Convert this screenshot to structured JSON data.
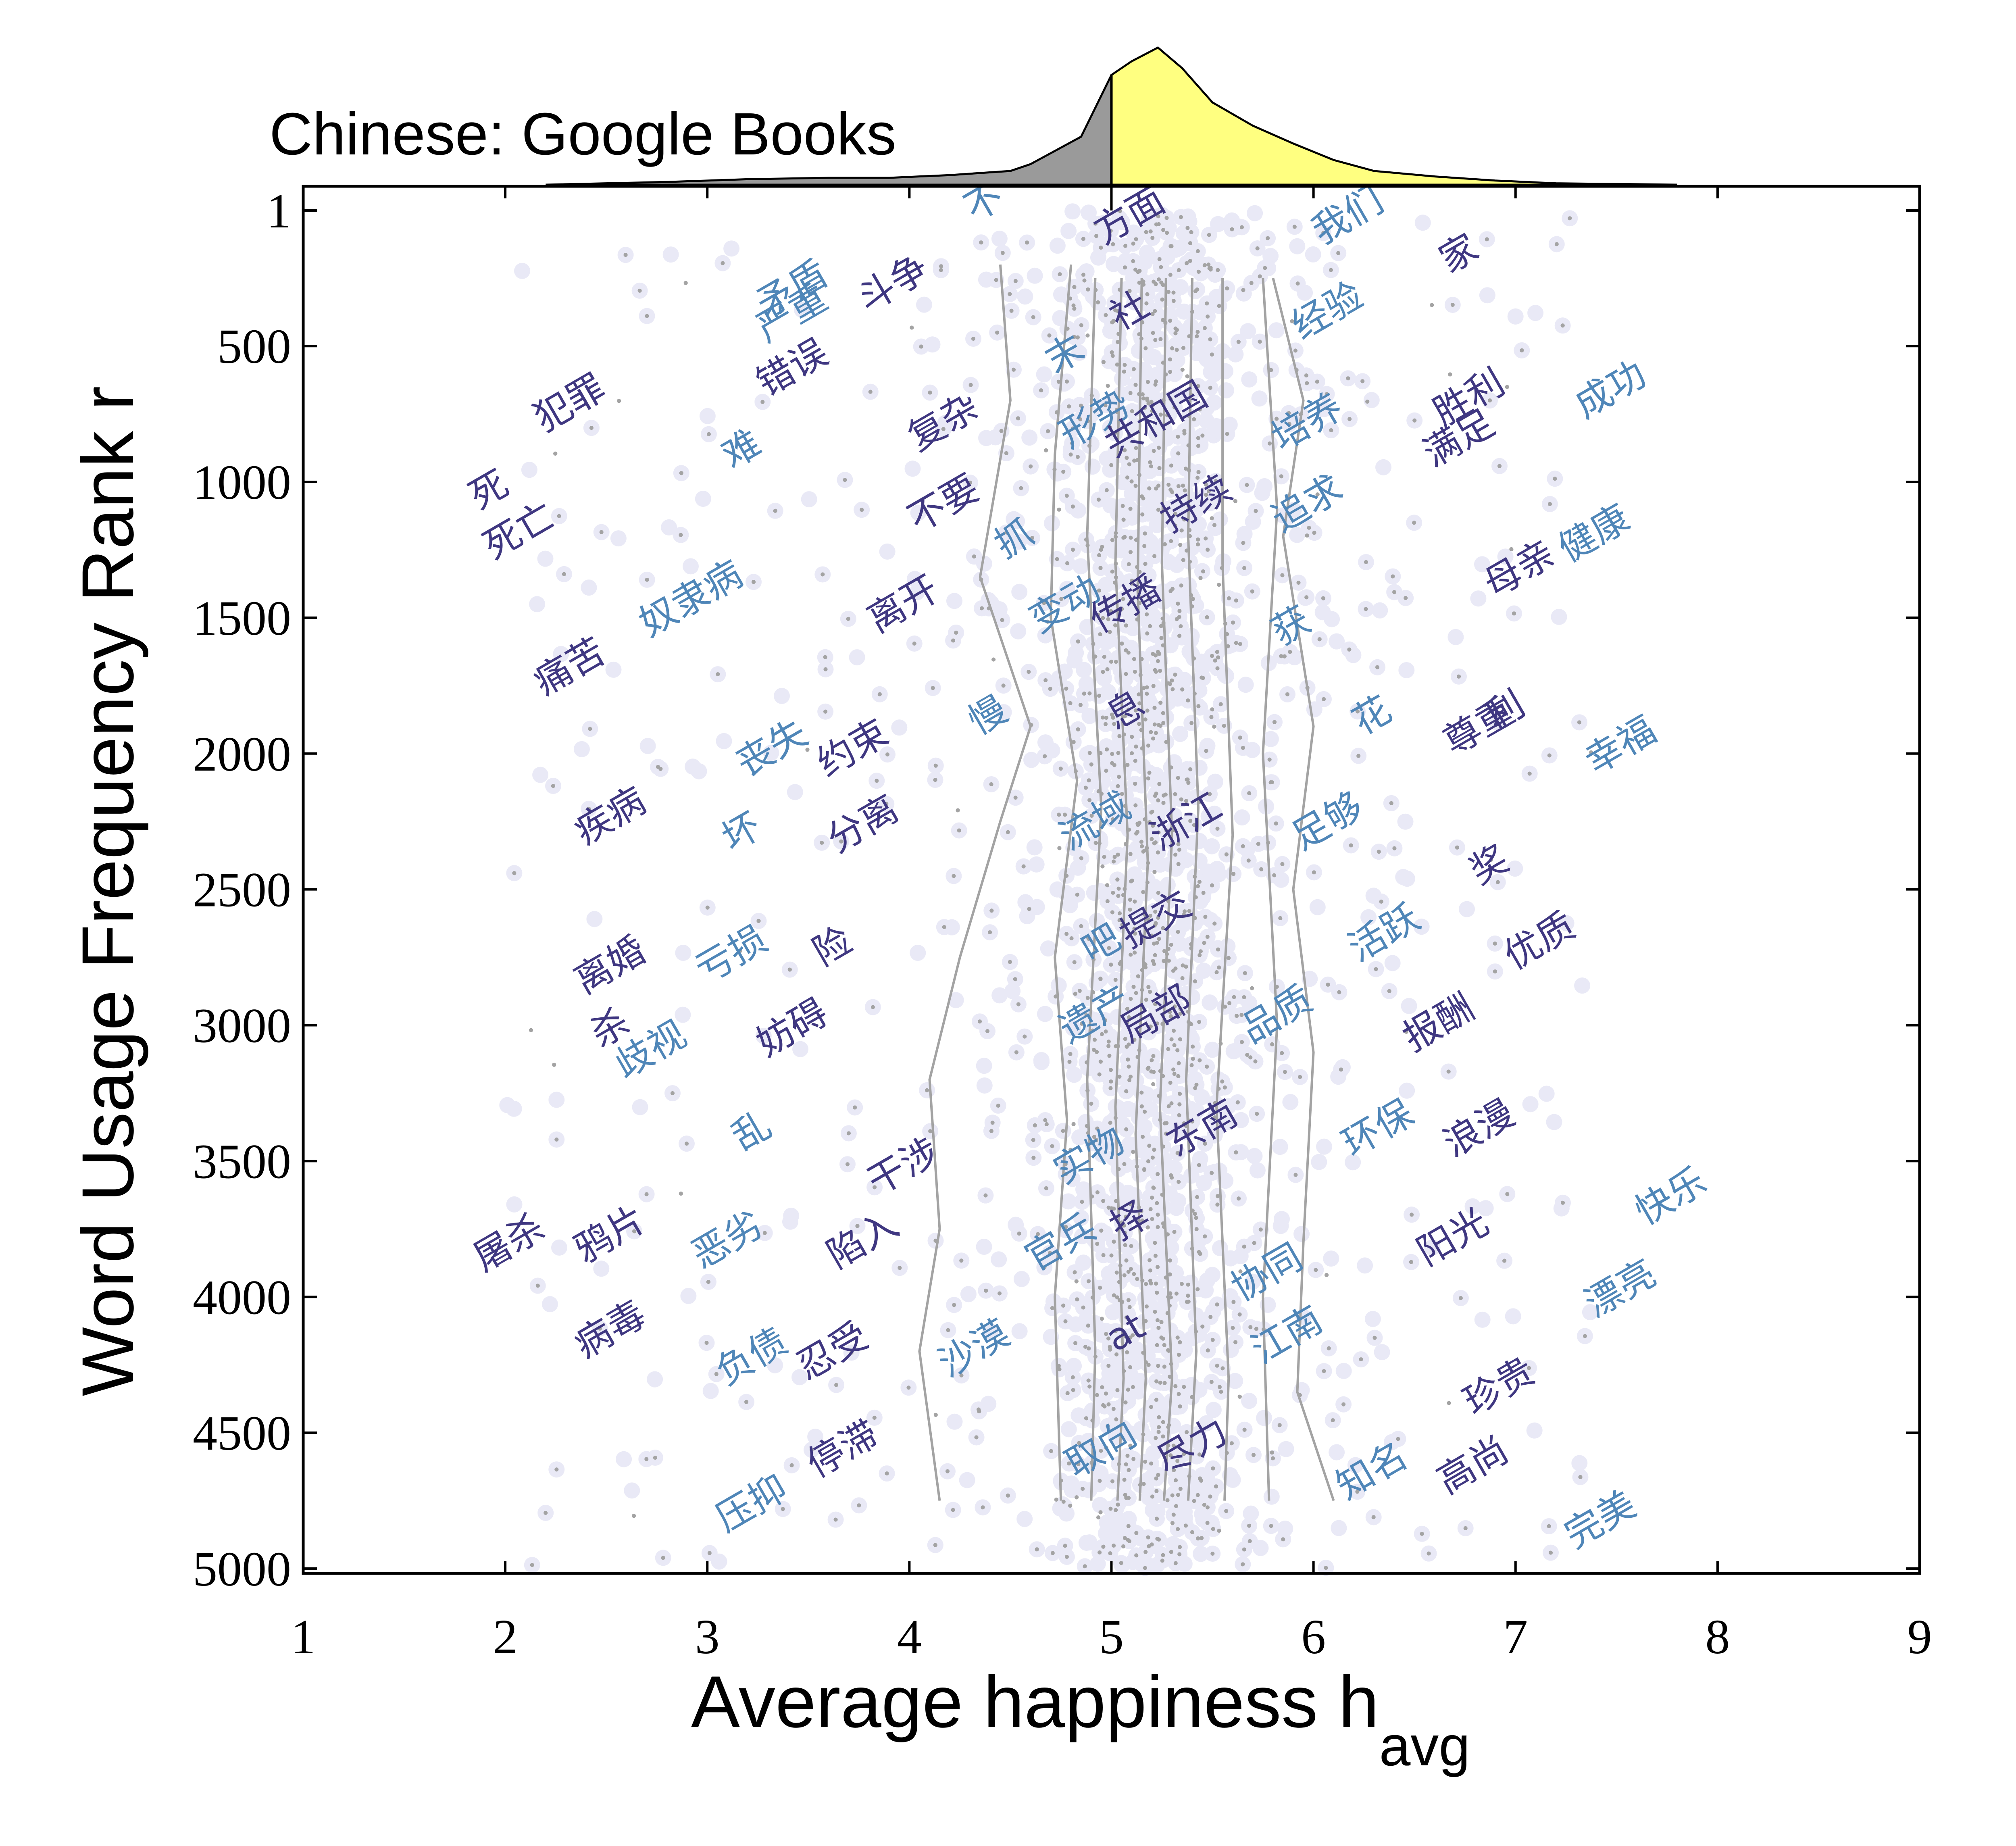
{
  "chart_data": {
    "type": "scatter",
    "title": "Chinese: Google Books",
    "xlabel": "Average happiness h",
    "xlabel_subscript": "avg",
    "ylabel": "Word Usage Frequency Rank r",
    "xlim": [
      1,
      9
    ],
    "ylim": [
      1,
      5000
    ],
    "y_inverted": true,
    "xticks": [
      "1",
      "2",
      "3",
      "4",
      "5",
      "6",
      "7",
      "8",
      "9"
    ],
    "yticks": [
      "1",
      "500",
      "1000",
      "1500",
      "2000",
      "2500",
      "3000",
      "3500",
      "4000",
      "4500",
      "5000"
    ],
    "colors": {
      "dots": "#e9e9f6",
      "points": "#a3a3a3",
      "contours": "#a3a3a3",
      "negative_words": "#3f3781",
      "positive_words": "#4f86b8",
      "hist_below": "#9a9a9a",
      "hist_above": "#ffff80"
    },
    "histogram": {
      "x": [
        2.2,
        2.8,
        3.2,
        3.6,
        3.9,
        4.2,
        4.5,
        4.6,
        4.85,
        5.0,
        5.1,
        5.23,
        5.35,
        5.5,
        5.7,
        5.9,
        6.1,
        6.3,
        6.6,
        6.9,
        7.2,
        7.5,
        7.8
      ],
      "density": [
        0.0,
        0.02,
        0.04,
        0.05,
        0.05,
        0.07,
        0.1,
        0.15,
        0.35,
        0.8,
        0.9,
        1.0,
        0.85,
        0.6,
        0.43,
        0.3,
        0.18,
        0.1,
        0.06,
        0.03,
        0.01,
        0.005,
        0.0
      ],
      "split": 5.0
    },
    "contours": [
      [
        [
          4.45,
          200
        ],
        [
          4.5,
          700
        ],
        [
          4.35,
          1350
        ],
        [
          4.6,
          1900
        ],
        [
          4.45,
          2250
        ],
        [
          4.25,
          2750
        ],
        [
          4.1,
          3200
        ],
        [
          4.15,
          3750
        ],
        [
          4.05,
          4200
        ],
        [
          4.15,
          4750
        ]
      ],
      [
        [
          4.8,
          200
        ],
        [
          4.72,
          900
        ],
        [
          4.7,
          1500
        ],
        [
          4.83,
          2100
        ],
        [
          4.72,
          2750
        ],
        [
          4.78,
          3350
        ],
        [
          4.72,
          4000
        ],
        [
          4.75,
          4750
        ]
      ],
      [
        [
          4.92,
          250
        ],
        [
          4.88,
          1200
        ],
        [
          4.95,
          2200
        ],
        [
          4.88,
          3200
        ],
        [
          4.92,
          4200
        ],
        [
          4.9,
          4750
        ]
      ],
      [
        [
          5.05,
          250
        ],
        [
          5.02,
          1300
        ],
        [
          5.08,
          2300
        ],
        [
          5.02,
          3300
        ],
        [
          5.06,
          4300
        ],
        [
          5.03,
          4750
        ]
      ],
      [
        [
          5.15,
          250
        ],
        [
          5.13,
          1400
        ],
        [
          5.18,
          2400
        ],
        [
          5.12,
          3400
        ],
        [
          5.17,
          4300
        ],
        [
          5.14,
          4750
        ]
      ],
      [
        [
          5.27,
          250
        ],
        [
          5.25,
          1300
        ],
        [
          5.3,
          2300
        ],
        [
          5.24,
          3300
        ],
        [
          5.3,
          4300
        ],
        [
          5.26,
          4750
        ]
      ],
      [
        [
          5.4,
          250
        ],
        [
          5.38,
          1200
        ],
        [
          5.43,
          2200
        ],
        [
          5.37,
          3200
        ],
        [
          5.42,
          4200
        ],
        [
          5.38,
          4750
        ]
      ],
      [
        [
          5.55,
          250
        ],
        [
          5.55,
          1300
        ],
        [
          5.6,
          2300
        ],
        [
          5.52,
          3300
        ],
        [
          5.58,
          4300
        ],
        [
          5.56,
          4750
        ]
      ],
      [
        [
          5.75,
          250
        ],
        [
          5.82,
          1100
        ],
        [
          5.75,
          2000
        ],
        [
          5.82,
          3000
        ],
        [
          5.75,
          4000
        ],
        [
          5.78,
          4750
        ]
      ],
      [
        [
          5.8,
          250
        ],
        [
          5.95,
          700
        ],
        [
          5.85,
          1200
        ],
        [
          6.0,
          1900
        ],
        [
          5.9,
          2500
        ],
        [
          6.0,
          3100
        ],
        [
          5.95,
          3800
        ],
        [
          5.92,
          4350
        ],
        [
          6.1,
          4750
        ]
      ]
    ],
    "words": [
      {
        "text": "不",
        "x": 4.4,
        "y": 10,
        "tone": "pos"
      },
      {
        "text": "方面",
        "x": 5.12,
        "y": 60,
        "tone": "neg"
      },
      {
        "text": "我们",
        "x": 6.2,
        "y": 60,
        "tone": "pos"
      },
      {
        "text": "家",
        "x": 6.75,
        "y": 200,
        "tone": "neg"
      },
      {
        "text": "矛盾",
        "x": 3.45,
        "y": 330,
        "tone": "pos"
      },
      {
        "text": "严重",
        "x": 3.45,
        "y": 420,
        "tone": "pos"
      },
      {
        "text": "斗争",
        "x": 3.95,
        "y": 310,
        "tone": "neg"
      },
      {
        "text": "社",
        "x": 5.12,
        "y": 410,
        "tone": "neg"
      },
      {
        "text": "经验",
        "x": 6.1,
        "y": 410,
        "tone": "pos"
      },
      {
        "text": "末",
        "x": 4.8,
        "y": 570,
        "tone": "pos"
      },
      {
        "text": "错误",
        "x": 3.45,
        "y": 620,
        "tone": "neg"
      },
      {
        "text": "犯罪",
        "x": 2.35,
        "y": 750,
        "tone": "neg"
      },
      {
        "text": "成功",
        "x": 7.5,
        "y": 700,
        "tone": "pos"
      },
      {
        "text": "胜利",
        "x": 6.8,
        "y": 730,
        "tone": "neg"
      },
      {
        "text": "满足",
        "x": 6.75,
        "y": 880,
        "tone": "neg"
      },
      {
        "text": "复杂",
        "x": 4.2,
        "y": 820,
        "tone": "neg"
      },
      {
        "text": "形势",
        "x": 4.95,
        "y": 810,
        "tone": "pos"
      },
      {
        "text": "共和国",
        "x": 5.25,
        "y": 810,
        "tone": "neg"
      },
      {
        "text": "培养",
        "x": 6.0,
        "y": 820,
        "tone": "pos"
      },
      {
        "text": "难",
        "x": 3.2,
        "y": 920,
        "tone": "pos"
      },
      {
        "text": "死",
        "x": 1.95,
        "y": 1070,
        "tone": "neg"
      },
      {
        "text": "死亡",
        "x": 2.1,
        "y": 1220,
        "tone": "neg"
      },
      {
        "text": "不要",
        "x": 4.2,
        "y": 1120,
        "tone": "neg"
      },
      {
        "text": "持续",
        "x": 5.45,
        "y": 1120,
        "tone": "neg"
      },
      {
        "text": "追求",
        "x": 6.0,
        "y": 1120,
        "tone": "pos"
      },
      {
        "text": "抓",
        "x": 4.55,
        "y": 1250,
        "tone": "pos"
      },
      {
        "text": "健康",
        "x": 7.42,
        "y": 1230,
        "tone": "pos"
      },
      {
        "text": "母亲",
        "x": 7.05,
        "y": 1360,
        "tone": "neg"
      },
      {
        "text": "奴隶病",
        "x": 2.95,
        "y": 1470,
        "tone": "pos"
      },
      {
        "text": "离开",
        "x": 4.0,
        "y": 1490,
        "tone": "neg"
      },
      {
        "text": "变动",
        "x": 4.8,
        "y": 1490,
        "tone": "pos"
      },
      {
        "text": "传播",
        "x": 5.1,
        "y": 1490,
        "tone": "neg"
      },
      {
        "text": "获",
        "x": 5.92,
        "y": 1570,
        "tone": "pos"
      },
      {
        "text": "痛苦",
        "x": 2.35,
        "y": 1720,
        "tone": "neg"
      },
      {
        "text": "慢",
        "x": 4.42,
        "y": 1900,
        "tone": "pos"
      },
      {
        "text": "息",
        "x": 5.1,
        "y": 1880,
        "tone": "neg"
      },
      {
        "text": "花",
        "x": 6.32,
        "y": 1900,
        "tone": "pos"
      },
      {
        "text": "尊重",
        "x": 6.85,
        "y": 1940,
        "tone": "neg"
      },
      {
        "text": "利",
        "x": 6.98,
        "y": 1880,
        "tone": "neg"
      },
      {
        "text": "幸福",
        "x": 7.55,
        "y": 2010,
        "tone": "pos"
      },
      {
        "text": "丧失",
        "x": 3.35,
        "y": 2020,
        "tone": "pos"
      },
      {
        "text": "约束",
        "x": 3.75,
        "y": 2020,
        "tone": "neg"
      },
      {
        "text": "疾病",
        "x": 2.55,
        "y": 2270,
        "tone": "neg"
      },
      {
        "text": "坏",
        "x": 3.2,
        "y": 2330,
        "tone": "pos"
      },
      {
        "text": "分离",
        "x": 3.8,
        "y": 2300,
        "tone": "neg"
      },
      {
        "text": "流域",
        "x": 4.95,
        "y": 2290,
        "tone": "pos"
      },
      {
        "text": "浙江",
        "x": 5.4,
        "y": 2290,
        "tone": "neg"
      },
      {
        "text": "足够",
        "x": 6.1,
        "y": 2290,
        "tone": "pos"
      },
      {
        "text": "奖",
        "x": 6.9,
        "y": 2450,
        "tone": "neg"
      },
      {
        "text": "吧",
        "x": 4.98,
        "y": 2740,
        "tone": "pos"
      },
      {
        "text": "提交",
        "x": 5.25,
        "y": 2650,
        "tone": "neg"
      },
      {
        "text": "活跃",
        "x": 6.38,
        "y": 2700,
        "tone": "pos"
      },
      {
        "text": "优质",
        "x": 7.15,
        "y": 2730,
        "tone": "neg"
      },
      {
        "text": "离婚",
        "x": 2.55,
        "y": 2820,
        "tone": "neg"
      },
      {
        "text": "亏损",
        "x": 3.15,
        "y": 2780,
        "tone": "pos"
      },
      {
        "text": "险",
        "x": 3.65,
        "y": 2750,
        "tone": "neg"
      },
      {
        "text": "杀",
        "x": 2.55,
        "y": 3050,
        "tone": "neg"
      },
      {
        "text": "歧视",
        "x": 2.75,
        "y": 3130,
        "tone": "pos"
      },
      {
        "text": "妨碍",
        "x": 3.45,
        "y": 3050,
        "tone": "neg"
      },
      {
        "text": "遗产",
        "x": 4.95,
        "y": 3000,
        "tone": "pos"
      },
      {
        "text": "局部",
        "x": 5.25,
        "y": 3000,
        "tone": "neg"
      },
      {
        "text": "品质",
        "x": 5.85,
        "y": 3000,
        "tone": "pos"
      },
      {
        "text": "报酬",
        "x": 6.65,
        "y": 3030,
        "tone": "neg"
      },
      {
        "text": "乱",
        "x": 3.25,
        "y": 3430,
        "tone": "pos"
      },
      {
        "text": "干涉",
        "x": 4.0,
        "y": 3560,
        "tone": "neg"
      },
      {
        "text": "实物",
        "x": 4.92,
        "y": 3520,
        "tone": "pos"
      },
      {
        "text": "东南",
        "x": 5.48,
        "y": 3420,
        "tone": "neg"
      },
      {
        "text": "环保",
        "x": 6.35,
        "y": 3420,
        "tone": "pos"
      },
      {
        "text": "浪漫",
        "x": 6.85,
        "y": 3420,
        "tone": "neg"
      },
      {
        "text": "屠杀",
        "x": 2.05,
        "y": 3840,
        "tone": "neg"
      },
      {
        "text": "鸦片",
        "x": 2.55,
        "y": 3810,
        "tone": "neg"
      },
      {
        "text": "恶劣",
        "x": 3.13,
        "y": 3830,
        "tone": "pos"
      },
      {
        "text": "陷入",
        "x": 3.8,
        "y": 3830,
        "tone": "neg"
      },
      {
        "text": "官兵",
        "x": 4.78,
        "y": 3840,
        "tone": "pos"
      },
      {
        "text": "择",
        "x": 5.12,
        "y": 3760,
        "tone": "neg"
      },
      {
        "text": "阳光",
        "x": 6.72,
        "y": 3820,
        "tone": "neg"
      },
      {
        "text": "快乐",
        "x": 7.8,
        "y": 3670,
        "tone": "pos"
      },
      {
        "text": "协同",
        "x": 5.8,
        "y": 3950,
        "tone": "pos"
      },
      {
        "text": "漂亮",
        "x": 7.55,
        "y": 4010,
        "tone": "pos"
      },
      {
        "text": "病毒",
        "x": 2.55,
        "y": 4160,
        "tone": "neg"
      },
      {
        "text": "at",
        "x": 5.1,
        "y": 4170,
        "tone": "neg"
      },
      {
        "text": "江南",
        "x": 5.9,
        "y": 4180,
        "tone": "pos"
      },
      {
        "text": "负债",
        "x": 3.25,
        "y": 4260,
        "tone": "pos"
      },
      {
        "text": "忍受",
        "x": 3.65,
        "y": 4240,
        "tone": "neg"
      },
      {
        "text": "沙漠",
        "x": 4.35,
        "y": 4230,
        "tone": "pos"
      },
      {
        "text": "珍贵",
        "x": 6.95,
        "y": 4370,
        "tone": "neg"
      },
      {
        "text": "停滞",
        "x": 3.7,
        "y": 4600,
        "tone": "neg"
      },
      {
        "text": "取向",
        "x": 4.98,
        "y": 4600,
        "tone": "pos"
      },
      {
        "text": "尽力",
        "x": 5.43,
        "y": 4590,
        "tone": "neg"
      },
      {
        "text": "知名",
        "x": 6.32,
        "y": 4680,
        "tone": "pos"
      },
      {
        "text": "高尚",
        "x": 6.82,
        "y": 4660,
        "tone": "neg"
      },
      {
        "text": "压抑",
        "x": 3.25,
        "y": 4800,
        "tone": "pos"
      },
      {
        "text": "完美",
        "x": 7.45,
        "y": 4860,
        "tone": "pos"
      }
    ]
  }
}
